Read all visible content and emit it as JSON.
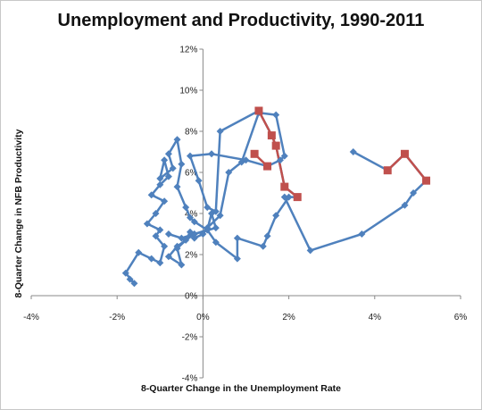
{
  "chart_data": {
    "type": "scatter",
    "title": "Unemployment and Productivity, 1990-2011",
    "xlabel": "8-Quarter Change in the Unemployment Rate",
    "ylabel": "8-Quarter Change in NFB Productivity",
    "xlim": [
      -4,
      6
    ],
    "ylim": [
      -4,
      12
    ],
    "x_ticks": [
      -4,
      -2,
      0,
      2,
      4,
      6
    ],
    "y_ticks": [
      -4,
      -2,
      0,
      2,
      4,
      6,
      8,
      10,
      12
    ],
    "x_tick_labels": [
      "-4%",
      "-2%",
      "0%",
      "2%",
      "4%",
      "6%"
    ],
    "y_tick_labels": [
      "-4%",
      "-2%",
      "0%",
      "2%",
      "4%",
      "6%",
      "8%",
      "10%",
      "12%"
    ],
    "grid": false,
    "colors": {
      "main": "#4f81bd",
      "highlight": "#c0504d"
    },
    "series": [
      {
        "marker": "diamond",
        "color": "#4f81bd",
        "x": [
          -1.7,
          -1.6,
          -1.8,
          -1.5,
          -1.2,
          -1.0,
          -0.9,
          -1.1,
          -1.0,
          -1.3,
          -1.1,
          -0.9,
          -1.2,
          -1.0,
          -0.8,
          -0.9,
          -1.0,
          -0.7,
          -0.8,
          -0.6,
          -0.5,
          -0.6,
          -0.4,
          -0.3,
          -0.2,
          0.1,
          0.2,
          0.3,
          -0.2,
          -0.6,
          -0.8,
          -0.5,
          -0.6,
          -0.4,
          -0.3,
          -0.2,
          0.0,
          0.1,
          0.6,
          1.2,
          1.7,
          1.8,
          1.9
        ],
        "y": [
          0.8,
          0.6,
          1.1,
          2.1,
          1.8,
          1.6,
          2.4,
          2.9,
          3.2,
          3.5,
          4.0,
          4.6,
          4.9,
          5.4,
          5.8,
          6.6,
          5.7,
          6.2,
          6.9,
          7.6,
          6.4,
          5.3,
          4.3,
          3.8,
          3.6,
          3.2,
          4.0,
          3.3,
          3.0,
          2.4,
          1.9,
          1.5,
          2.3,
          2.7,
          3.1,
          2.8,
          3.0,
          3.3,
          6.0,
          6.5,
          8.8,
          6.8,
          6.6
        ],
        "path": [
          [
            -1.7,
            0.8
          ],
          [
            -1.6,
            0.6
          ],
          [
            -1.8,
            1.1
          ],
          [
            -1.5,
            2.1
          ],
          [
            -1.2,
            1.8
          ],
          [
            -1.0,
            1.6
          ],
          [
            -0.9,
            2.4
          ],
          [
            -1.1,
            2.9
          ],
          [
            -1.0,
            3.2
          ],
          [
            -1.3,
            3.5
          ],
          [
            -1.1,
            4.0
          ],
          [
            -0.9,
            4.6
          ],
          [
            -1.2,
            4.9
          ],
          [
            -1.0,
            5.4
          ],
          [
            -0.8,
            5.8
          ],
          [
            -0.9,
            6.6
          ],
          [
            -1.0,
            5.7
          ],
          [
            -0.7,
            6.2
          ],
          [
            -0.8,
            6.9
          ],
          [
            -0.6,
            7.6
          ],
          [
            -0.5,
            6.4
          ],
          [
            -0.6,
            5.3
          ],
          [
            -0.4,
            4.3
          ],
          [
            -0.3,
            3.8
          ],
          [
            -0.2,
            3.6
          ],
          [
            0.1,
            3.2
          ],
          [
            0.2,
            4.0
          ],
          [
            0.3,
            3.3
          ],
          [
            -0.2,
            3.0
          ],
          [
            -0.6,
            2.4
          ],
          [
            -0.8,
            1.9
          ],
          [
            -0.5,
            1.5
          ],
          [
            -0.6,
            2.3
          ],
          [
            -0.4,
            2.7
          ],
          [
            -0.3,
            3.1
          ],
          [
            -0.2,
            2.8
          ],
          [
            0.0,
            3.0
          ],
          [
            0.1,
            3.3
          ],
          [
            0.4,
            3.9
          ],
          [
            0.6,
            6.0
          ],
          [
            0.9,
            6.5
          ],
          [
            1.3,
            8.9
          ],
          [
            1.7,
            8.8
          ],
          [
            1.9,
            6.8
          ],
          [
            1.8,
            6.6
          ],
          [
            1.5,
            6.3
          ],
          [
            1.0,
            6.6
          ],
          [
            0.2,
            6.9
          ],
          [
            -0.3,
            6.8
          ],
          [
            -0.1,
            5.6
          ],
          [
            0.1,
            4.3
          ],
          [
            0.3,
            4.1
          ],
          [
            0.4,
            8.0
          ],
          [
            1.3,
            9.0
          ],
          [
            1.6,
            7.8
          ],
          [
            1.7,
            7.3
          ],
          [
            1.9,
            5.3
          ],
          [
            2.2,
            4.8
          ],
          [
            2.0,
            4.8
          ],
          [
            1.7,
            3.9
          ],
          [
            1.5,
            2.9
          ],
          [
            1.4,
            2.4
          ],
          [
            0.8,
            2.8
          ],
          [
            0.8,
            1.8
          ],
          [
            0.3,
            2.6
          ],
          [
            0.1,
            3.2
          ],
          [
            -0.2,
            3.0
          ],
          [
            -0.5,
            2.8
          ],
          [
            -0.8,
            3.0
          ]
        ]
      },
      {
        "marker": "diamond",
        "color": "#4f81bd",
        "path": [
          [
            1.9,
            4.8
          ],
          [
            2.5,
            2.2
          ],
          [
            3.7,
            3.0
          ],
          [
            4.7,
            4.4
          ],
          [
            4.9,
            5.0
          ],
          [
            5.2,
            5.6
          ],
          [
            4.7,
            6.9
          ],
          [
            4.3,
            6.1
          ],
          [
            3.5,
            7.0
          ]
        ]
      },
      {
        "marker": "square",
        "color": "#c0504d",
        "path": [
          [
            1.3,
            9.0
          ],
          [
            1.6,
            7.8
          ],
          [
            1.7,
            7.3
          ],
          [
            1.9,
            5.3
          ],
          [
            2.2,
            4.8
          ]
        ]
      },
      {
        "marker": "square",
        "color": "#c0504d",
        "path": [
          [
            1.2,
            6.9
          ],
          [
            1.5,
            6.3
          ]
        ]
      },
      {
        "marker": "square",
        "color": "#c0504d",
        "path": [
          [
            4.3,
            6.1
          ],
          [
            4.7,
            6.9
          ],
          [
            5.2,
            5.6
          ]
        ]
      }
    ]
  }
}
